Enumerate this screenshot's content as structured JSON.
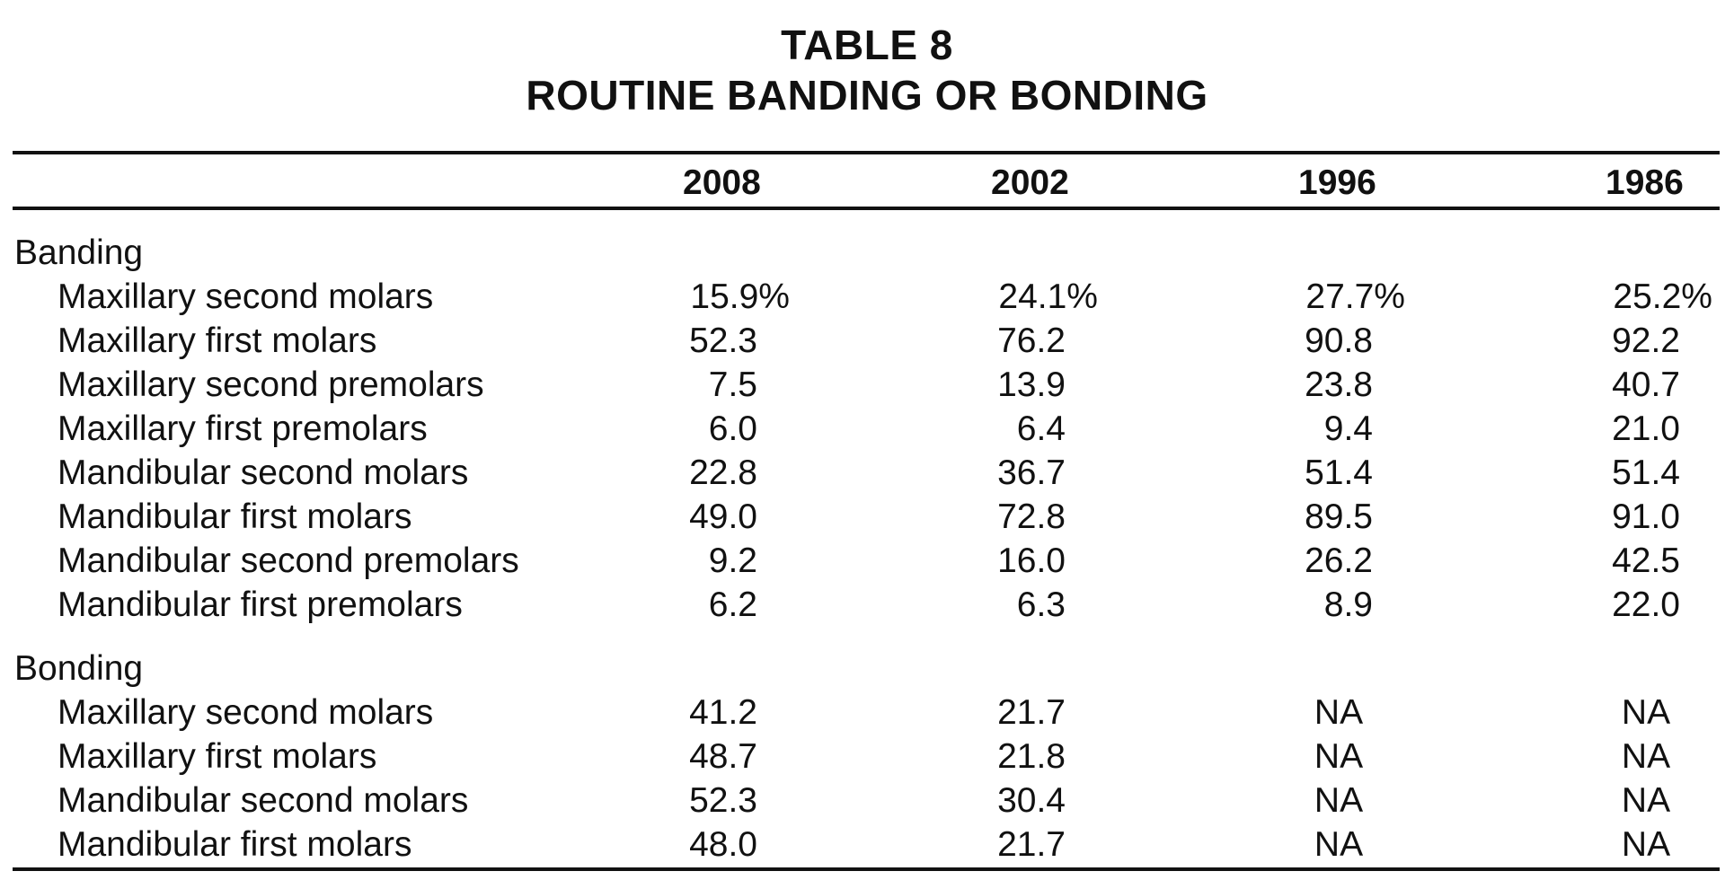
{
  "title": {
    "line1": "TABLE 8",
    "line2": "ROUTINE BANDING OR BONDING"
  },
  "columns": [
    "2008",
    "2002",
    "1996",
    "1986"
  ],
  "sections": [
    {
      "name": "Banding",
      "rows": [
        {
          "label": "Maxillary second molars",
          "values": [
            "15.9%",
            "24.1%",
            "27.7%",
            "25.2%"
          ]
        },
        {
          "label": "Maxillary first molars",
          "values": [
            "52.3",
            "76.2",
            "90.8",
            "92.2"
          ]
        },
        {
          "label": "Maxillary second premolars",
          "values": [
            "7.5",
            "13.9",
            "23.8",
            "40.7"
          ]
        },
        {
          "label": "Maxillary first premolars",
          "values": [
            "6.0",
            "6.4",
            "9.4",
            "21.0"
          ]
        },
        {
          "label": "Mandibular second molars",
          "values": [
            "22.8",
            "36.7",
            "51.4",
            "51.4"
          ]
        },
        {
          "label": "Mandibular first molars",
          "values": [
            "49.0",
            "72.8",
            "89.5",
            "91.0"
          ]
        },
        {
          "label": "Mandibular second premolars",
          "values": [
            "9.2",
            "16.0",
            "26.2",
            "42.5"
          ]
        },
        {
          "label": "Mandibular first premolars",
          "values": [
            "6.2",
            "6.3",
            "8.9",
            "22.0"
          ]
        }
      ]
    },
    {
      "name": "Bonding",
      "rows": [
        {
          "label": "Maxillary second molars",
          "values": [
            "41.2",
            "21.7",
            "NA",
            "NA"
          ]
        },
        {
          "label": "Maxillary first molars",
          "values": [
            "48.7",
            "21.8",
            "NA",
            "NA"
          ]
        },
        {
          "label": "Mandibular second molars",
          "values": [
            "52.3",
            "30.4",
            "NA",
            "NA"
          ]
        },
        {
          "label": "Mandibular first molars",
          "values": [
            "48.0",
            "21.7",
            "NA",
            "NA"
          ]
        }
      ]
    }
  ]
}
